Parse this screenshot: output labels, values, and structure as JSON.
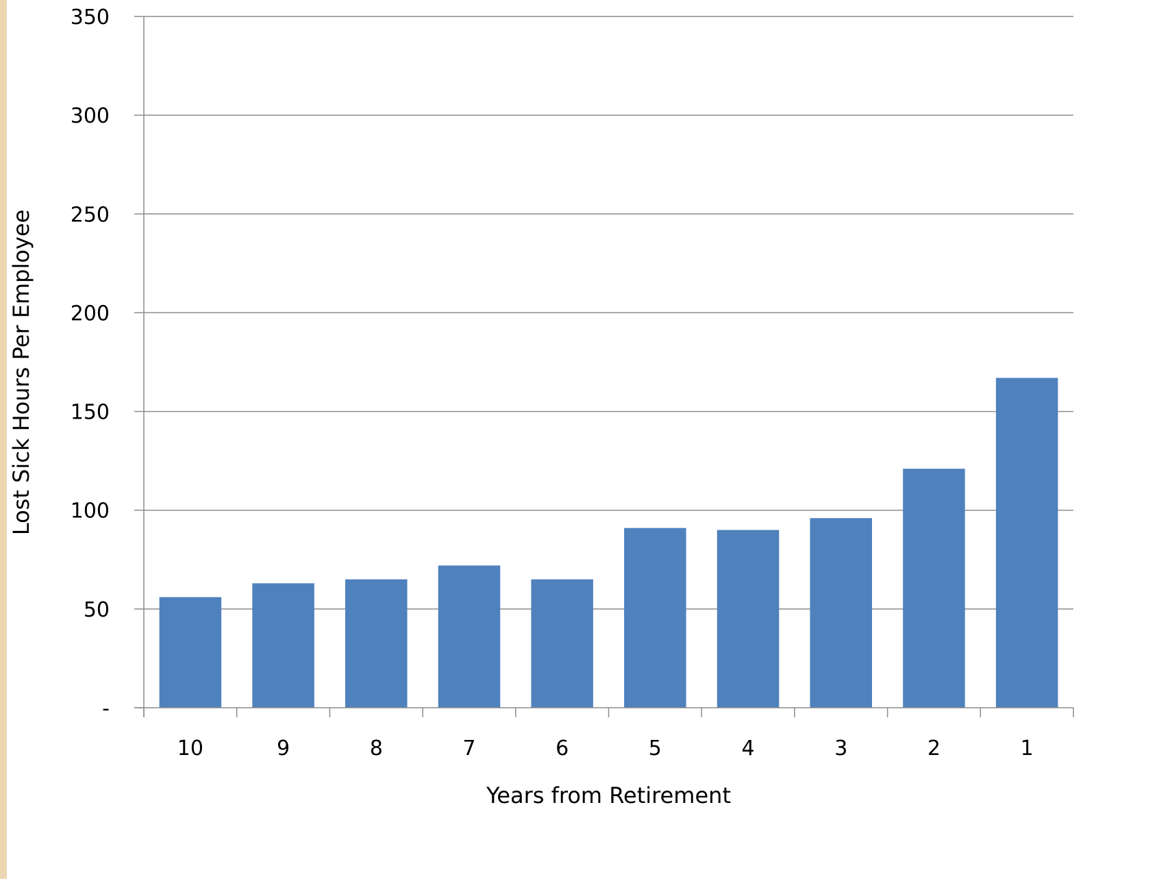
{
  "colors": {
    "bar": "#4f81bd",
    "gridline": "#8c8c8c",
    "axis": "#8c8c8c",
    "left_stripe": "#eed6b3",
    "background": "#ffffff"
  },
  "chart_data": {
    "type": "bar",
    "title": "",
    "xlabel": "Years from Retirement",
    "ylabel": "Lost Sick Hours Per Employee",
    "categories": [
      "10",
      "9",
      "8",
      "7",
      "6",
      "5",
      "4",
      "3",
      "2",
      "1"
    ],
    "series": [
      {
        "values": [
          56,
          63,
          65,
          72,
          65,
          91,
          90,
          96,
          121,
          167
        ]
      }
    ],
    "ylim": [
      0,
      350
    ],
    "yticks": [
      0,
      50,
      100,
      150,
      200,
      250,
      300,
      350
    ],
    "ytick_labels": [
      "-",
      "50",
      "100",
      "150",
      "200",
      "250",
      "300",
      "350"
    ],
    "grid": true,
    "legend": "none"
  }
}
